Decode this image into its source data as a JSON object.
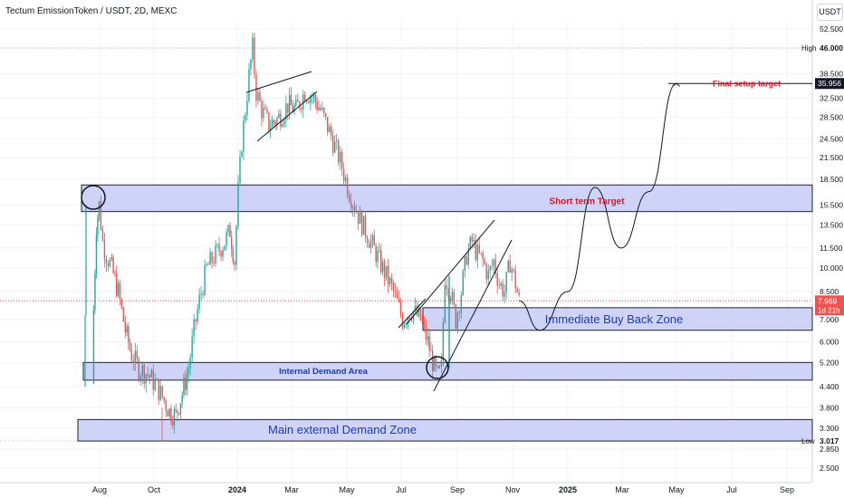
{
  "header": {
    "title": "Tectum EmissionToken / USDT, 2D, MEXC",
    "currency_badge": "USDT"
  },
  "colors": {
    "candle_up": "#26a69a",
    "candle_down": "#ef5350",
    "zone_fill": "#c5cbf6",
    "zone_border": "#1e222d",
    "zone_text": "#1e3ab8",
    "target_text": "#e3142b",
    "price_line": "#ef5350",
    "grid": "#f0f3fa"
  },
  "chart_data": {
    "type": "candlestick",
    "title": "Tectum EmissionToken / USDT, 2D, MEXC",
    "y_scale": "log",
    "ylim": [
      2.35,
      57
    ],
    "y_ticks": [
      "52.500",
      "46.000",
      "38.500",
      "32.500",
      "28.500",
      "24.500",
      "21.500",
      "18.500",
      "15.500",
      "13.500",
      "11.500",
      "10.000",
      "8.500",
      "7.000",
      "6.000",
      "5.200",
      "4.400",
      "3.800",
      "3.300",
      "2.850",
      "2.500"
    ],
    "x_ticks": [
      "Aug",
      "Oct",
      "2024",
      "Mar",
      "May",
      "Jul",
      "Sep",
      "Nov",
      "2025",
      "Mar",
      "May",
      "Jul",
      "Sep"
    ],
    "price_levels": [
      {
        "label": "High",
        "value": "46.000"
      },
      {
        "label": "Final setup target",
        "value": "35.956"
      },
      {
        "label": "Last price",
        "value": "7.969",
        "countdown": "1d 21h"
      },
      {
        "label": "Low",
        "value": "3.017"
      }
    ],
    "series": [
      {
        "kind": "ohlc_close_path",
        "points": [
          [
            "2023-07-25",
            4.5
          ],
          [
            "2023-07-26",
            7.5
          ],
          [
            "2023-07-29",
            13.5
          ],
          [
            "2023-08-01",
            15.5
          ],
          [
            "2023-08-05",
            12.0
          ],
          [
            "2023-08-09",
            11.0
          ],
          [
            "2023-08-15",
            10.0
          ],
          [
            "2023-08-22",
            8.5
          ],
          [
            "2023-08-30",
            6.5
          ],
          [
            "2023-09-06",
            5.5
          ],
          [
            "2023-09-14",
            5.0
          ],
          [
            "2023-09-24",
            4.8
          ],
          [
            "2023-10-04",
            4.4
          ],
          [
            "2023-10-12",
            4.0
          ],
          [
            "2023-10-18",
            3.7
          ],
          [
            "2023-10-25",
            3.6
          ],
          [
            "2023-11-01",
            4.2
          ],
          [
            "2023-11-08",
            5.0
          ],
          [
            "2023-11-14",
            6.5
          ],
          [
            "2023-11-20",
            8.0
          ],
          [
            "2023-11-28",
            10.0
          ],
          [
            "2023-12-08",
            11.0
          ],
          [
            "2023-12-18",
            12.0
          ],
          [
            "2023-12-24",
            13.0
          ],
          [
            "2023-12-29",
            10.5
          ],
          [
            "2024-01-02",
            17.0
          ],
          [
            "2024-01-06",
            24.0
          ],
          [
            "2024-01-10",
            30.0
          ],
          [
            "2024-01-14",
            38.0
          ],
          [
            "2024-01-18",
            46.0
          ],
          [
            "2024-01-22",
            34.0
          ],
          [
            "2024-01-28",
            30.0
          ],
          [
            "2024-02-05",
            27.0
          ],
          [
            "2024-02-14",
            28.0
          ],
          [
            "2024-02-26",
            31.0
          ],
          [
            "2024-03-06",
            30.0
          ],
          [
            "2024-03-16",
            34.0
          ],
          [
            "2024-03-24",
            33.0
          ],
          [
            "2024-04-02",
            30.0
          ],
          [
            "2024-04-14",
            25.0
          ],
          [
            "2024-04-24",
            21.0
          ],
          [
            "2024-05-04",
            17.0
          ],
          [
            "2024-05-16",
            14.0
          ],
          [
            "2024-05-28",
            12.0
          ],
          [
            "2024-06-10",
            10.0
          ],
          [
            "2024-06-22",
            8.5
          ],
          [
            "2024-07-02",
            7.0
          ],
          [
            "2024-07-12",
            7.5
          ],
          [
            "2024-07-22",
            7.0
          ],
          [
            "2024-07-30",
            6.0
          ],
          [
            "2024-08-06",
            5.0
          ],
          [
            "2024-08-10",
            4.7
          ],
          [
            "2024-08-14",
            5.0
          ],
          [
            "2024-08-18",
            9.5
          ],
          [
            "2024-08-24",
            8.5
          ],
          [
            "2024-08-30",
            7.0
          ],
          [
            "2024-09-05",
            8.5
          ],
          [
            "2024-09-11",
            11.0
          ],
          [
            "2024-09-17",
            12.0
          ],
          [
            "2024-09-23",
            11.0
          ],
          [
            "2024-09-29",
            10.5
          ],
          [
            "2024-10-05",
            9.5
          ],
          [
            "2024-10-11",
            10.5
          ],
          [
            "2024-10-17",
            9.0
          ],
          [
            "2024-10-23",
            8.5
          ],
          [
            "2024-10-29",
            10.5
          ],
          [
            "2024-11-04",
            9.0
          ],
          [
            "2024-11-08",
            7.969
          ]
        ]
      },
      {
        "kind": "projection",
        "points": [
          [
            "2024-11-08",
            7.969
          ],
          [
            "2024-12-01",
            6.5
          ],
          [
            "2025-01-01",
            8.5
          ],
          [
            "2025-01-31",
            17.5
          ],
          [
            "2025-03-01",
            11.5
          ],
          [
            "2025-04-01",
            17.0
          ],
          [
            "2025-05-01",
            35.956
          ]
        ]
      }
    ],
    "zones": [
      {
        "label": "Short term Target",
        "low": 14.8,
        "high": 17.8
      },
      {
        "label": "Immediate Buy Back Zone",
        "low": 6.5,
        "high": 7.6
      },
      {
        "label": "Internal Demand Area",
        "low": 4.6,
        "high": 5.2
      },
      {
        "label": "Main external Demand Zone",
        "low": 3.017,
        "high": 3.5
      }
    ],
    "annotations": [
      "Final setup target",
      "Short term Target",
      "Immediate Buy Back Zone",
      "Internal Demand Area",
      "Main external Demand Zone"
    ]
  }
}
